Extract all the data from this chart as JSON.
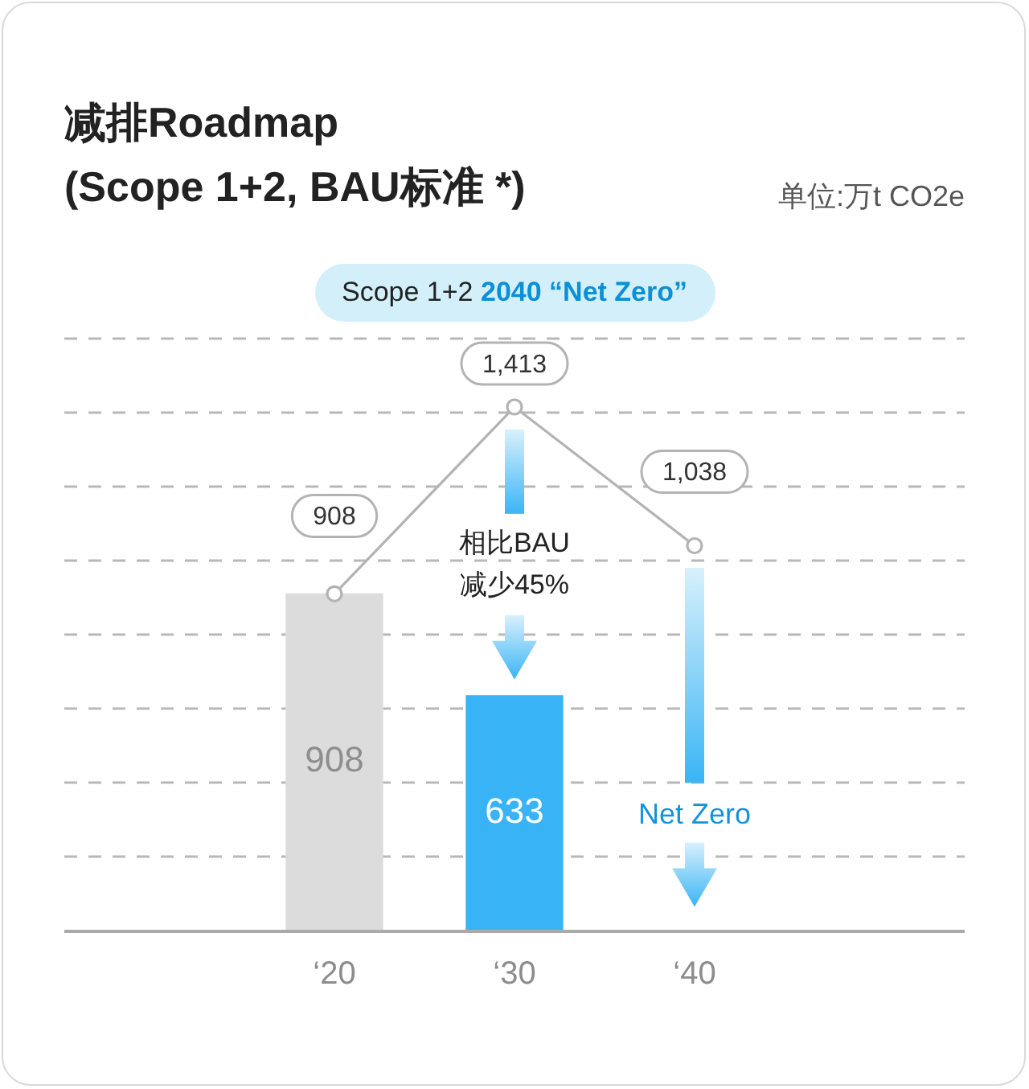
{
  "chart_data": {
    "type": "bar",
    "title": "减排Roadmap\n(Scope 1+2, BAU标准 *)",
    "categories": [
      "‘20",
      "‘30",
      "‘40"
    ],
    "series": [
      {
        "colors": [
          "#dcdcdc",
          "#38b4f6",
          null
        ],
        "values": [
          908,
          633,
          null
        ],
        "value_labels": [
          "908",
          "633",
          null
        ]
      },
      {
        "type": "line",
        "color": "#b3b3b3",
        "marker": "circle",
        "values": [
          908,
          1413,
          1038
        ],
        "value_labels": [
          "908",
          "1,413",
          "1,038"
        ]
      }
    ],
    "annotations": [
      "单位:万t CO2e",
      "Scope 1+2",
      "2040 “Net Zero”",
      "相比BAU\n减少45%",
      "Net Zero"
    ],
    "grid": "y",
    "legend": false,
    "tick_labels": "x"
  }
}
